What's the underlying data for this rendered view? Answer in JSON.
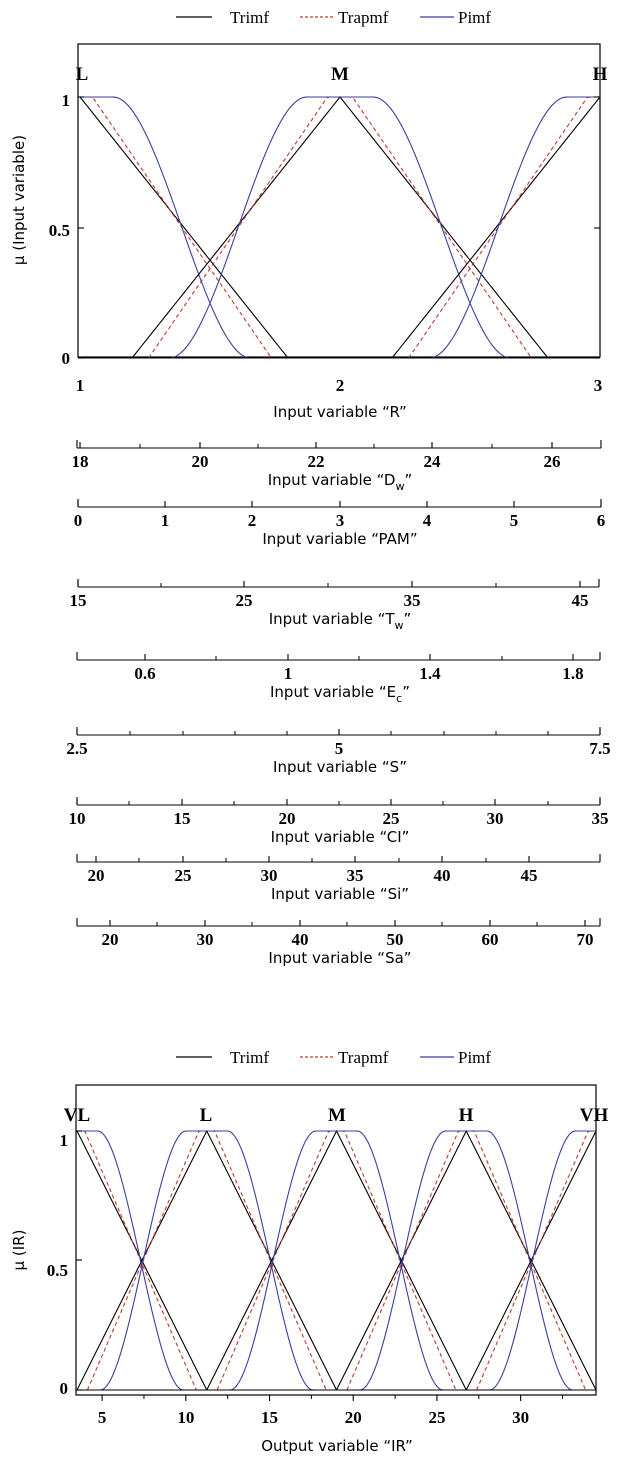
{
  "colors": {
    "trimf": "#000000",
    "trapmf": "#c0392b",
    "pimf": "#3b3fa0",
    "axis": "#000000"
  },
  "charts": [
    {
      "legend": [
        "Trimf",
        "Trapmf",
        "Pimf"
      ],
      "ylabel": "μ (Input variable)",
      "yticks": [
        "0",
        "0.5",
        "1"
      ],
      "mf_labels": [
        "L",
        "M",
        "H"
      ],
      "xticks": [
        "1",
        "2",
        "3"
      ],
      "xlabel": "Input variable “R”"
    },
    {
      "legend": [
        "Trimf",
        "Trapmf",
        "Pimf"
      ],
      "ylabel": "μ (IR)",
      "yticks": [
        "0",
        "0.5",
        "1"
      ],
      "mf_labels": [
        "VL",
        "L",
        "M",
        "H",
        "VH"
      ],
      "xticks": [
        "5",
        "10",
        "15",
        "20",
        "25",
        "30"
      ],
      "xlabel": "Output variable “IR”"
    }
  ],
  "scales": [
    {
      "ticks": [
        "18",
        "20",
        "22",
        "24",
        "26"
      ],
      "label_main": "Input variable “D",
      "label_sub": "w",
      "label_end": "”"
    },
    {
      "ticks": [
        "0",
        "1",
        "2",
        "3",
        "4",
        "5",
        "6"
      ],
      "label_main": "Input variable “PAM”",
      "label_sub": "",
      "label_end": ""
    },
    {
      "ticks": [
        "15",
        "25",
        "35",
        "45"
      ],
      "label_main": "Input variable “T",
      "label_sub": "w",
      "label_end": "”"
    },
    {
      "ticks": [
        "0.6",
        "1",
        "1.4",
        "1.8"
      ],
      "label_main": "Input variable “E",
      "label_sub": "c",
      "label_end": "”"
    },
    {
      "ticks": [
        "2.5",
        "5",
        "7.5"
      ],
      "label_main": "Input variable “S”",
      "label_sub": "",
      "label_end": ""
    },
    {
      "ticks": [
        "10",
        "15",
        "20",
        "25",
        "30",
        "35"
      ],
      "label_main": "Input variable “CI”",
      "label_sub": "",
      "label_end": ""
    },
    {
      "ticks": [
        "20",
        "25",
        "30",
        "35",
        "40",
        "45"
      ],
      "label_main": "Input variable “Si”",
      "label_sub": "",
      "label_end": ""
    },
    {
      "ticks": [
        "20",
        "30",
        "40",
        "50",
        "60",
        "70"
      ],
      "label_main": "Input variable “Sa”",
      "label_sub": "",
      "label_end": ""
    }
  ],
  "chart_data": [
    {
      "type": "line",
      "xlabel": "Input variable “R”",
      "ylabel": "μ (Input variable)",
      "xlim": [
        1,
        3
      ],
      "ylim": [
        0,
        1
      ],
      "legend": [
        "Trimf",
        "Trapmf",
        "Pimf"
      ],
      "mf_centers": [
        1,
        2,
        3
      ],
      "mf_names": [
        "L",
        "M",
        "H"
      ],
      "series": [
        {
          "name": "Trimf",
          "x": [
            1,
            1.8,
            1.2,
            2,
            2.8,
            2.2,
            3
          ],
          "mf": [
            [
              0.2,
              1,
              1,
              1.8
            ],
            [
              1.2,
              2,
              2,
              2.8
            ],
            [
              2.2,
              3,
              3,
              3.8
            ]
          ]
        },
        {
          "name": "Trapmf",
          "mf": [
            [
              0.3,
              1,
              1.05,
              1.7
            ],
            [
              1.3,
              1.95,
              2.05,
              2.7
            ],
            [
              2.3,
              2.95,
              3,
              3.7
            ]
          ]
        },
        {
          "name": "Pimf",
          "mf": [
            [
              0.5,
              1,
              1.1,
              1.6
            ],
            [
              1.4,
              1.9,
              2.1,
              2.6
            ],
            [
              2.4,
              2.9,
              3,
              3.5
            ]
          ]
        }
      ],
      "input_scales": [
        {
          "variable": "Dw",
          "range": [
            18,
            26.8
          ]
        },
        {
          "variable": "PAM",
          "range": [
            0,
            6
          ]
        },
        {
          "variable": "Tw",
          "range": [
            15,
            46
          ]
        },
        {
          "variable": "Ec",
          "range": [
            0.4,
            1.9
          ]
        },
        {
          "variable": "S",
          "range": [
            2.5,
            7.5
          ]
        },
        {
          "variable": "CI",
          "range": [
            10,
            35
          ]
        },
        {
          "variable": "Si",
          "range": [
            19,
            49
          ]
        },
        {
          "variable": "Sa",
          "range": [
            16,
            71
          ]
        }
      ]
    },
    {
      "type": "line",
      "xlabel": "Output variable “IR”",
      "ylabel": "μ (IR)",
      "xlim": [
        3.5,
        34.5
      ],
      "ylim": [
        0,
        1
      ],
      "legend": [
        "Trimf",
        "Trapmf",
        "Pimf"
      ],
      "mf_centers": [
        3.5,
        11.25,
        19,
        26.75,
        34.5
      ],
      "mf_names": [
        "VL",
        "L",
        "M",
        "H",
        "VH"
      ]
    }
  ]
}
